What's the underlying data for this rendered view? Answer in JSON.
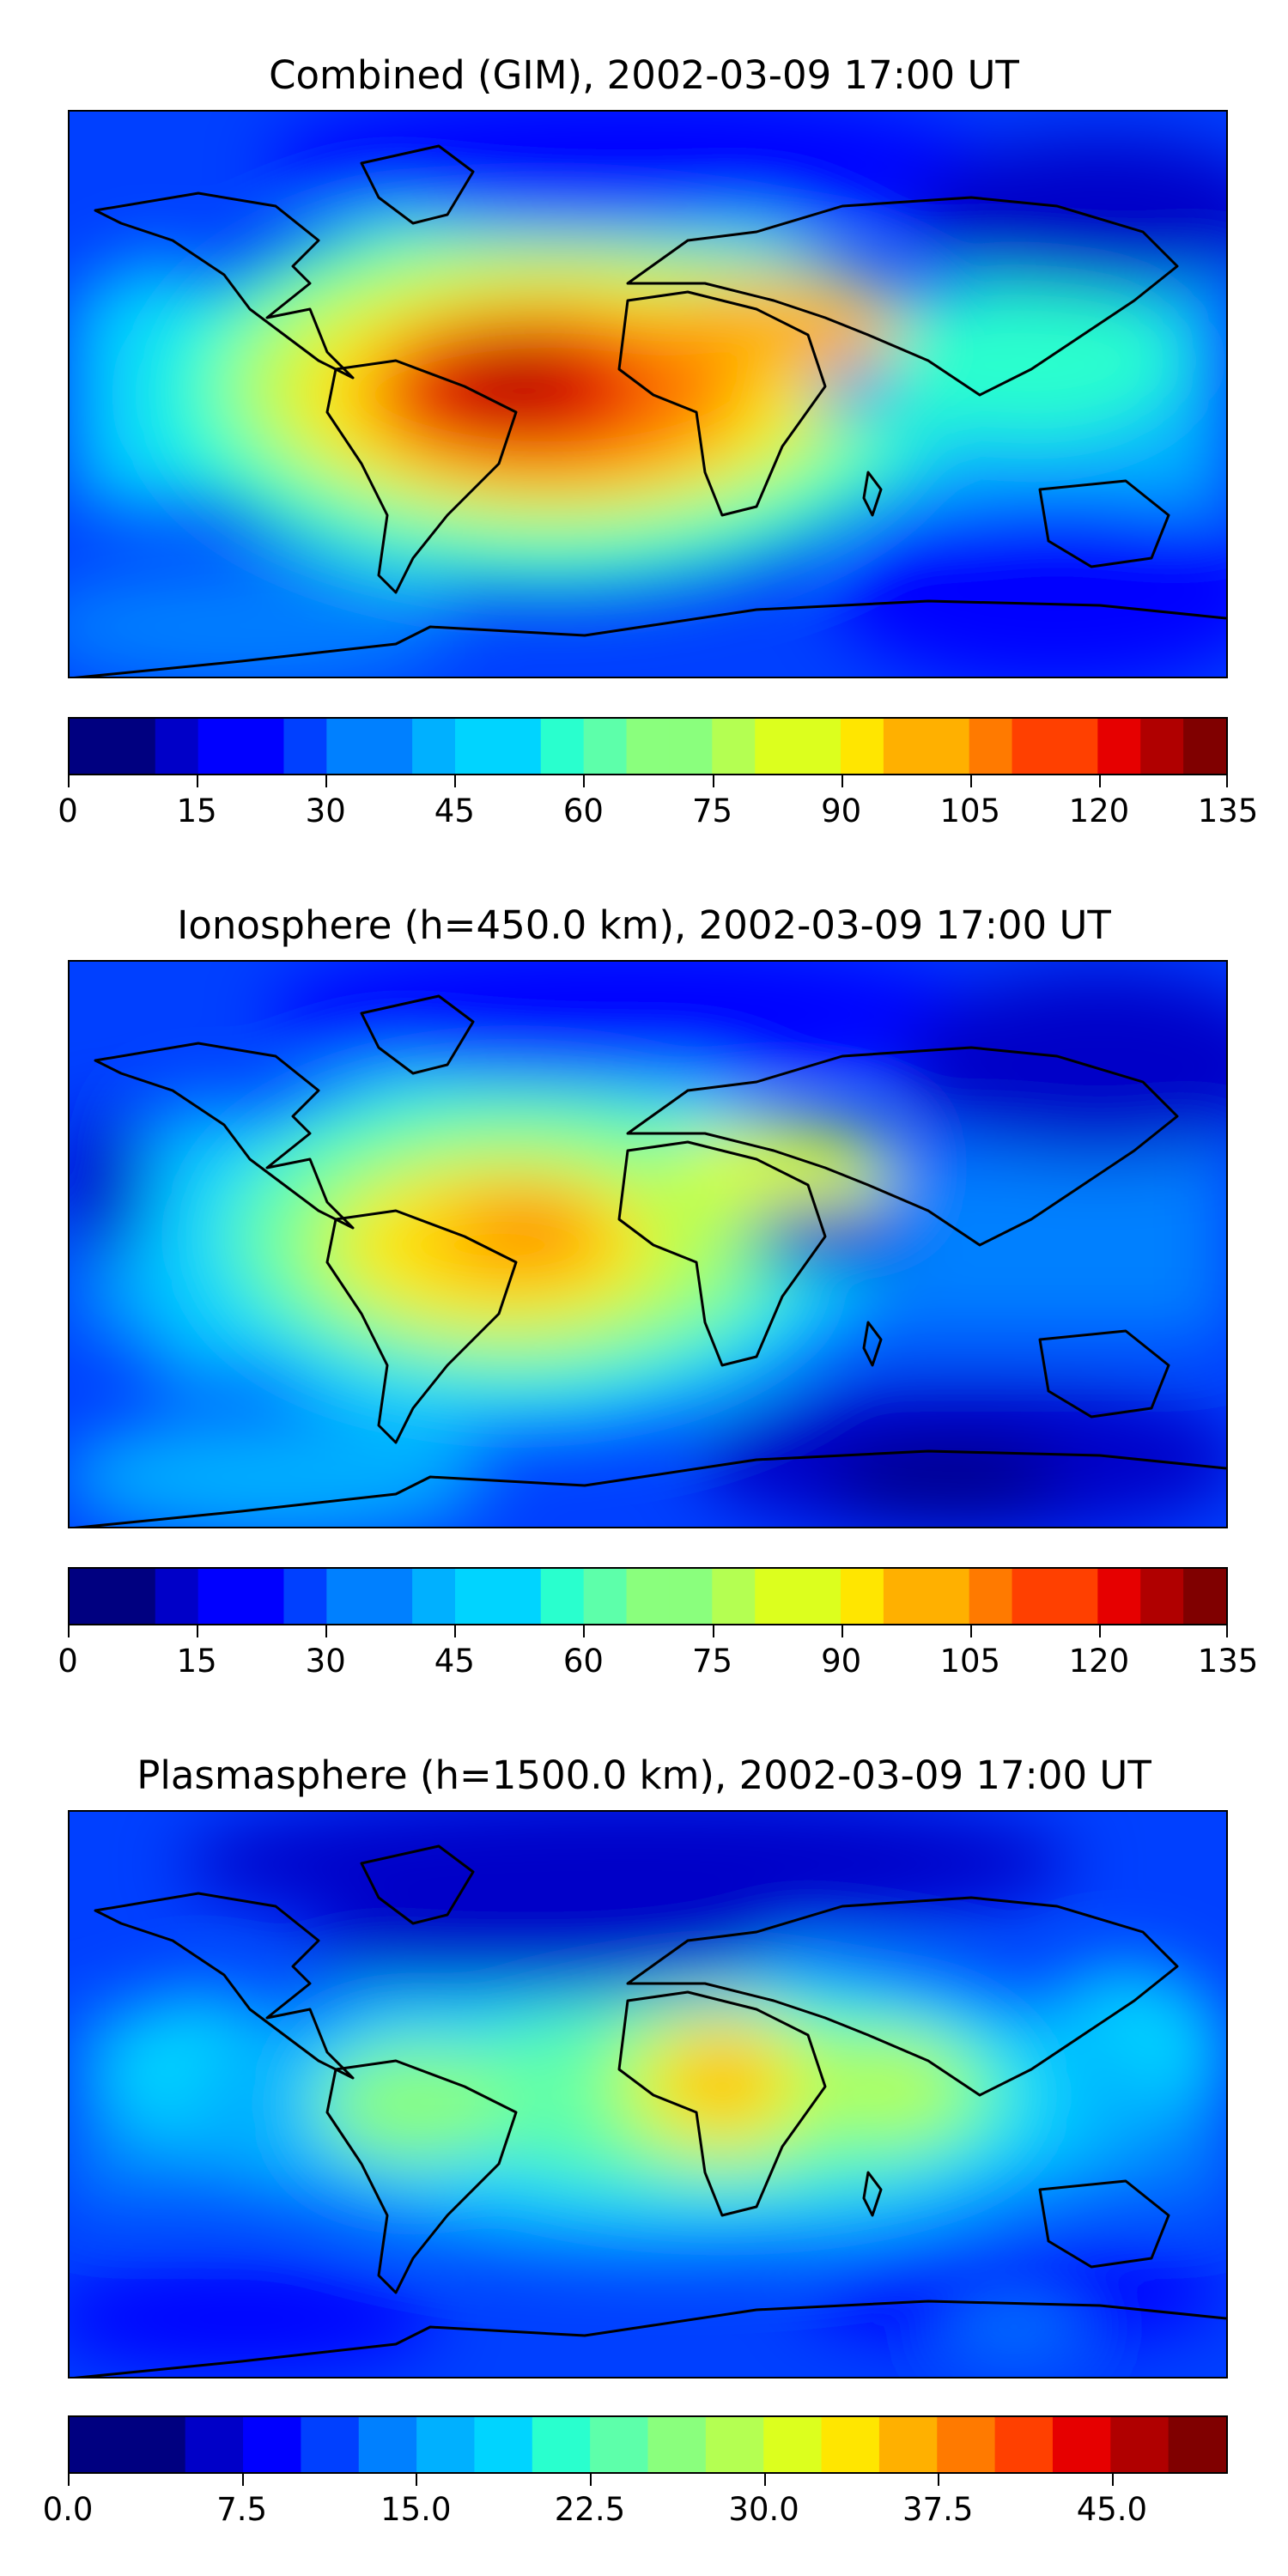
{
  "colors": [
    "#000080",
    "#0000c8",
    "#0000ff",
    "#0040ff",
    "#0080ff",
    "#00b0ff",
    "#00d4ff",
    "#29ffce",
    "#5dffaa",
    "#8aff7d",
    "#b4ff52",
    "#dcff1e",
    "#ffe600",
    "#ffb000",
    "#ff7a00",
    "#ff4000",
    "#e60000",
    "#b00000",
    "#800000"
  ],
  "chart_data": [
    {
      "type": "heatmap",
      "title": "Combined (GIM), 2002-03-09 17:00 UT",
      "colorbar": {
        "range": [
          0,
          135
        ],
        "ticks": [
          "0",
          "15",
          "30",
          "45",
          "60",
          "75",
          "90",
          "105",
          "120",
          "135"
        ],
        "levels": 27
      }
    },
    {
      "type": "heatmap",
      "title": "Ionosphere  (h=450.0 km), 2002-03-09 17:00 UT",
      "colorbar": {
        "range": [
          0,
          135
        ],
        "ticks": [
          "0",
          "15",
          "30",
          "45",
          "60",
          "75",
          "90",
          "105",
          "120",
          "135"
        ],
        "levels": 27
      }
    },
    {
      "type": "heatmap",
      "title": "Plasmasphere (h=1500.0 km), 2002-03-09 17:00 UT",
      "colorbar": {
        "range": [
          0.0,
          50.0
        ],
        "ticks": [
          "0.0",
          "7.5",
          "15.0",
          "22.5",
          "30.0",
          "37.5",
          "45.0"
        ],
        "levels": 20
      }
    }
  ]
}
